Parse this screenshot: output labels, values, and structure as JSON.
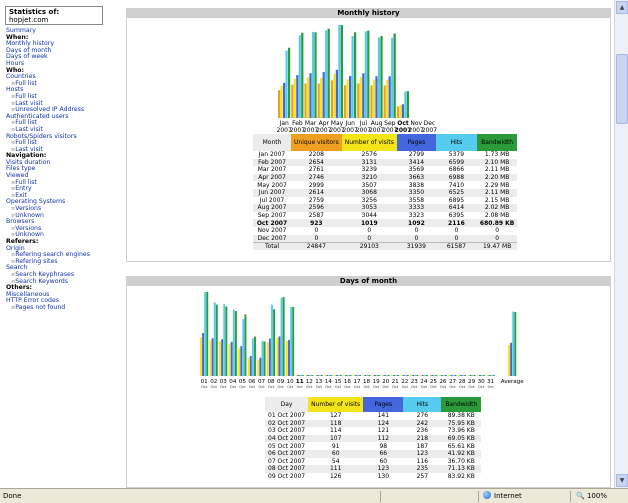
{
  "sidebar": {
    "stats_label": "Statistics of:",
    "site": "hopjet.com",
    "menu": [
      {
        "t": "Summary",
        "k": "lnk"
      },
      {
        "t": "When:",
        "k": "sec"
      },
      {
        "t": "Monthly history",
        "k": "lnk"
      },
      {
        "t": "Days of month",
        "k": "lnk"
      },
      {
        "t": "Days of week",
        "k": "lnk"
      },
      {
        "t": "Hours",
        "k": "lnk"
      },
      {
        "t": "Who:",
        "k": "sec"
      },
      {
        "t": "Countries",
        "k": "lnk"
      },
      {
        "t": "Full list",
        "k": "sub"
      },
      {
        "t": "Hosts",
        "k": "lnk"
      },
      {
        "t": "Full list",
        "k": "sub"
      },
      {
        "t": "Last visit",
        "k": "sub"
      },
      {
        "t": "Unresolved IP Address",
        "k": "sub"
      },
      {
        "t": "Authenticated users",
        "k": "lnk"
      },
      {
        "t": "Full list",
        "k": "sub"
      },
      {
        "t": "Last visit",
        "k": "sub"
      },
      {
        "t": "Robots/Spiders visitors",
        "k": "lnk"
      },
      {
        "t": "Full list",
        "k": "sub"
      },
      {
        "t": "Last visit",
        "k": "sub"
      },
      {
        "t": "Navigation:",
        "k": "sec"
      },
      {
        "t": "Visits duration",
        "k": "lnk"
      },
      {
        "t": "Files type",
        "k": "lnk"
      },
      {
        "t": "Viewed",
        "k": "lnk"
      },
      {
        "t": "Full list",
        "k": "sub"
      },
      {
        "t": "Entry",
        "k": "sub"
      },
      {
        "t": "Exit",
        "k": "sub"
      },
      {
        "t": "Operating Systems",
        "k": "lnk"
      },
      {
        "t": "Versions",
        "k": "sub"
      },
      {
        "t": "Unknown",
        "k": "sub"
      },
      {
        "t": "Browsers",
        "k": "lnk"
      },
      {
        "t": "Versions",
        "k": "sub"
      },
      {
        "t": "Unknown",
        "k": "sub"
      },
      {
        "t": "Referers:",
        "k": "sec"
      },
      {
        "t": "Origin",
        "k": "lnk"
      },
      {
        "t": "Refering search engines",
        "k": "sub"
      },
      {
        "t": "Refering sites",
        "k": "sub"
      },
      {
        "t": "Search",
        "k": "lnk"
      },
      {
        "t": "Search Keyphrases",
        "k": "sub"
      },
      {
        "t": "Search Keywords",
        "k": "sub"
      },
      {
        "t": "Others:",
        "k": "sec"
      },
      {
        "t": "Miscellaneous",
        "k": "lnk"
      },
      {
        "t": "HTTP Error codes",
        "k": "lnk"
      },
      {
        "t": "Pages not found",
        "k": "sub"
      }
    ]
  },
  "colors": {
    "unique": "#f0a020",
    "visits": "#f4e51a",
    "pages": "#4466dd",
    "hits": "#55ccee",
    "bandwidth": "#2a9a3a"
  },
  "monthly": {
    "title": "Monthly history",
    "headers": {
      "month": "Month",
      "unique": "Unique visitors",
      "visits": "Number of visits",
      "pages": "Pages",
      "hits": "Hits",
      "bandwidth": "Bandwidth"
    },
    "rows": [
      [
        "Jan 2007",
        "2208",
        "2576",
        "2799",
        "5379",
        "1.73 MB"
      ],
      [
        "Feb 2007",
        "2654",
        "3131",
        "3414",
        "6599",
        "2.10 MB"
      ],
      [
        "Mar 2007",
        "2761",
        "3239",
        "3569",
        "6866",
        "2.11 MB"
      ],
      [
        "Apr 2007",
        "2746",
        "3210",
        "3663",
        "6988",
        "2.20 MB"
      ],
      [
        "May 2007",
        "2999",
        "3507",
        "3838",
        "7410",
        "2.29 MB"
      ],
      [
        "Jun 2007",
        "2614",
        "3068",
        "3350",
        "6525",
        "2.11 MB"
      ],
      [
        "Jul 2007",
        "2759",
        "3256",
        "3558",
        "6895",
        "2.15 MB"
      ],
      [
        "Aug 2007",
        "2596",
        "3053",
        "3333",
        "6414",
        "2.02 MB"
      ],
      [
        "Sep 2007",
        "2587",
        "3044",
        "3323",
        "6395",
        "2.08 MB"
      ],
      [
        "Oct 2007",
        "923",
        "1019",
        "1092",
        "2116",
        "680.89 KB"
      ],
      [
        "Nov 2007",
        "0",
        "0",
        "0",
        "0",
        "0"
      ],
      [
        "Dec 2007",
        "0",
        "0",
        "0",
        "0",
        "0"
      ]
    ],
    "total": [
      "Total",
      "24847",
      "29103",
      "31939",
      "61587",
      "19.47 MB"
    ]
  },
  "daily": {
    "title": "Days of month",
    "headers": {
      "day": "Day",
      "visits": "Number of visits",
      "pages": "Pages",
      "hits": "Hits",
      "bandwidth": "Bandwidth"
    },
    "rows": [
      [
        "01 Oct 2007",
        "127",
        "141",
        "276",
        "89.38 KB"
      ],
      [
        "02 Oct 2007",
        "118",
        "124",
        "242",
        "75.95 KB"
      ],
      [
        "03 Oct 2007",
        "114",
        "121",
        "236",
        "73.96 KB"
      ],
      [
        "04 Oct 2007",
        "107",
        "112",
        "218",
        "69.05 KB"
      ],
      [
        "05 Oct 2007",
        "91",
        "98",
        "187",
        "65.61 KB"
      ],
      [
        "06 Oct 2007",
        "60",
        "66",
        "123",
        "41.92 KB"
      ],
      [
        "07 Oct 2007",
        "54",
        "60",
        "116",
        "36.70 KB"
      ],
      [
        "08 Oct 2007",
        "111",
        "123",
        "235",
        "71.13 KB"
      ],
      [
        "09 Oct 2007",
        "126",
        "130",
        "257",
        "83.92 KB"
      ]
    ]
  },
  "chart_data": [
    {
      "type": "bar",
      "title": "Monthly history",
      "categories": [
        "Jan 2007",
        "Feb 2007",
        "Mar 2007",
        "Apr 2007",
        "May 2007",
        "Jun 2007",
        "Jul 2007",
        "Aug 2007",
        "Sep 2007",
        "Oct 2007",
        "Nov 2007",
        "Dec 2007"
      ],
      "series": [
        {
          "name": "Unique visitors",
          "values": [
            2208,
            2654,
            2761,
            2746,
            2999,
            2614,
            2759,
            2596,
            2587,
            923,
            0,
            0
          ]
        },
        {
          "name": "Number of visits",
          "values": [
            2576,
            3131,
            3239,
            3210,
            3507,
            3068,
            3256,
            3053,
            3044,
            1019,
            0,
            0
          ]
        },
        {
          "name": "Pages",
          "values": [
            2799,
            3414,
            3569,
            3663,
            3838,
            3350,
            3558,
            3333,
            3323,
            1092,
            0,
            0
          ]
        },
        {
          "name": "Hits",
          "values": [
            5379,
            6599,
            6866,
            6988,
            7410,
            6525,
            6895,
            6414,
            6395,
            2116,
            0,
            0
          ]
        },
        {
          "name": "Bandwidth",
          "values": [
            1.73,
            2.1,
            2.11,
            2.2,
            2.29,
            2.11,
            2.15,
            2.02,
            2.08,
            0.66,
            0,
            0
          ]
        }
      ]
    },
    {
      "type": "bar",
      "title": "Days of month",
      "categories": [
        "01",
        "02",
        "03",
        "04",
        "05",
        "06",
        "07",
        "08",
        "09",
        "10",
        "11",
        "12",
        "13",
        "14",
        "15",
        "16",
        "17",
        "18",
        "19",
        "20",
        "21",
        "22",
        "23",
        "24",
        "25",
        "26",
        "27",
        "28",
        "29",
        "30",
        "31"
      ],
      "series": [
        {
          "name": "Number of visits",
          "values": [
            127,
            118,
            114,
            107,
            91,
            60,
            54,
            111,
            126,
            115,
            0,
            0,
            0,
            0,
            0,
            0,
            0,
            0,
            0,
            0,
            0,
            0,
            0,
            0,
            0,
            0,
            0,
            0,
            0,
            0,
            0
          ]
        },
        {
          "name": "Pages",
          "values": [
            141,
            124,
            121,
            112,
            98,
            66,
            60,
            123,
            130,
            118,
            0,
            0,
            0,
            0,
            0,
            0,
            0,
            0,
            0,
            0,
            0,
            0,
            0,
            0,
            0,
            0,
            0,
            0,
            0,
            0,
            0
          ]
        },
        {
          "name": "Hits",
          "values": [
            276,
            242,
            236,
            218,
            187,
            123,
            116,
            235,
            257,
            226,
            0,
            0,
            0,
            0,
            0,
            0,
            0,
            0,
            0,
            0,
            0,
            0,
            0,
            0,
            0,
            0,
            0,
            0,
            0,
            0,
            0
          ]
        },
        {
          "name": "Bandwidth",
          "values": [
            89.38,
            75.95,
            73.96,
            69.05,
            65.61,
            41.92,
            36.7,
            71.13,
            83.92,
            73.5,
            0,
            0,
            0,
            0,
            0,
            0,
            0,
            0,
            0,
            0,
            0,
            0,
            0,
            0,
            0,
            0,
            0,
            0,
            0,
            0,
            0
          ]
        }
      ],
      "average_label": "Average",
      "month_label": "Oct"
    }
  ],
  "statusbar": {
    "text": "Done",
    "zone": "Internet",
    "zoom": "100%"
  },
  "scroll": {
    "up": "▲",
    "down": "▼"
  }
}
